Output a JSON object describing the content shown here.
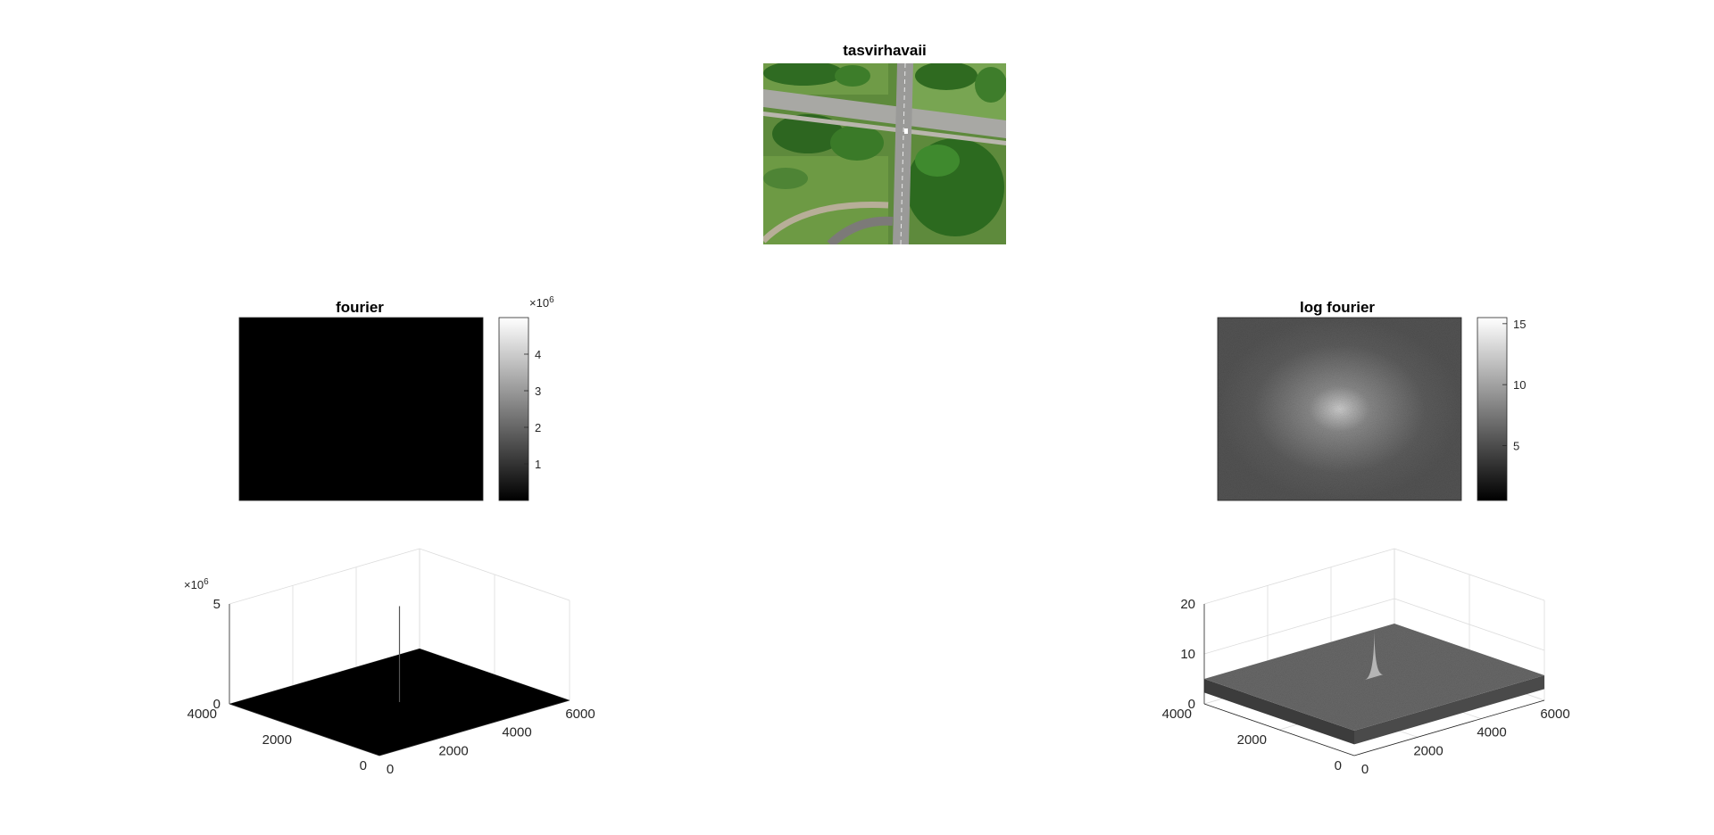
{
  "figure": {
    "background": "#ffffff",
    "axis_color": "#262626",
    "grid_color": "#dcdcdc"
  },
  "chart_data": [
    {
      "id": "photo",
      "type": "image",
      "title": "tasvirhavaii",
      "content": "aerial photo of a road intersection surrounded by trees and grass"
    },
    {
      "id": "fourier",
      "type": "heatmap",
      "title": "fourier",
      "colormap": "gray",
      "image_fill": "#000000",
      "colorbar": {
        "ticks": [
          "1",
          "2",
          "3",
          "4"
        ],
        "tick_values": [
          1,
          2,
          3,
          4
        ],
        "range": [
          0,
          5
        ],
        "exponent_base": "×10",
        "exponent_power": "6"
      }
    },
    {
      "id": "logfourier",
      "type": "heatmap",
      "title": "log fourier",
      "colormap": "gray",
      "colorbar": {
        "ticks": [
          "5",
          "10",
          "15"
        ],
        "tick_values": [
          5,
          10,
          15
        ],
        "range": [
          0.5,
          15.5
        ]
      }
    },
    {
      "id": "surf-fourier",
      "type": "surface",
      "title": "",
      "xlim": [
        0,
        6000
      ],
      "ylim": [
        0,
        4000
      ],
      "zlim": [
        0,
        5
      ],
      "xticks": [
        "0",
        "2000",
        "4000",
        "6000"
      ],
      "yticks": [
        "0",
        "2000",
        "4000"
      ],
      "zticks": [
        "0",
        "5"
      ],
      "exponent_base": "×10",
      "exponent_power": "6",
      "peak_value": 4.8,
      "floor_value": 0
    },
    {
      "id": "surf-logfourier",
      "type": "surface",
      "title": "",
      "xlim": [
        0,
        6000
      ],
      "ylim": [
        0,
        4000
      ],
      "zlim": [
        0,
        20
      ],
      "xticks": [
        "0",
        "2000",
        "4000",
        "6000"
      ],
      "yticks": [
        "0",
        "2000",
        "4000"
      ],
      "zticks": [
        "0",
        "10",
        "20"
      ],
      "peak_value": 15,
      "floor_value": 5
    }
  ]
}
